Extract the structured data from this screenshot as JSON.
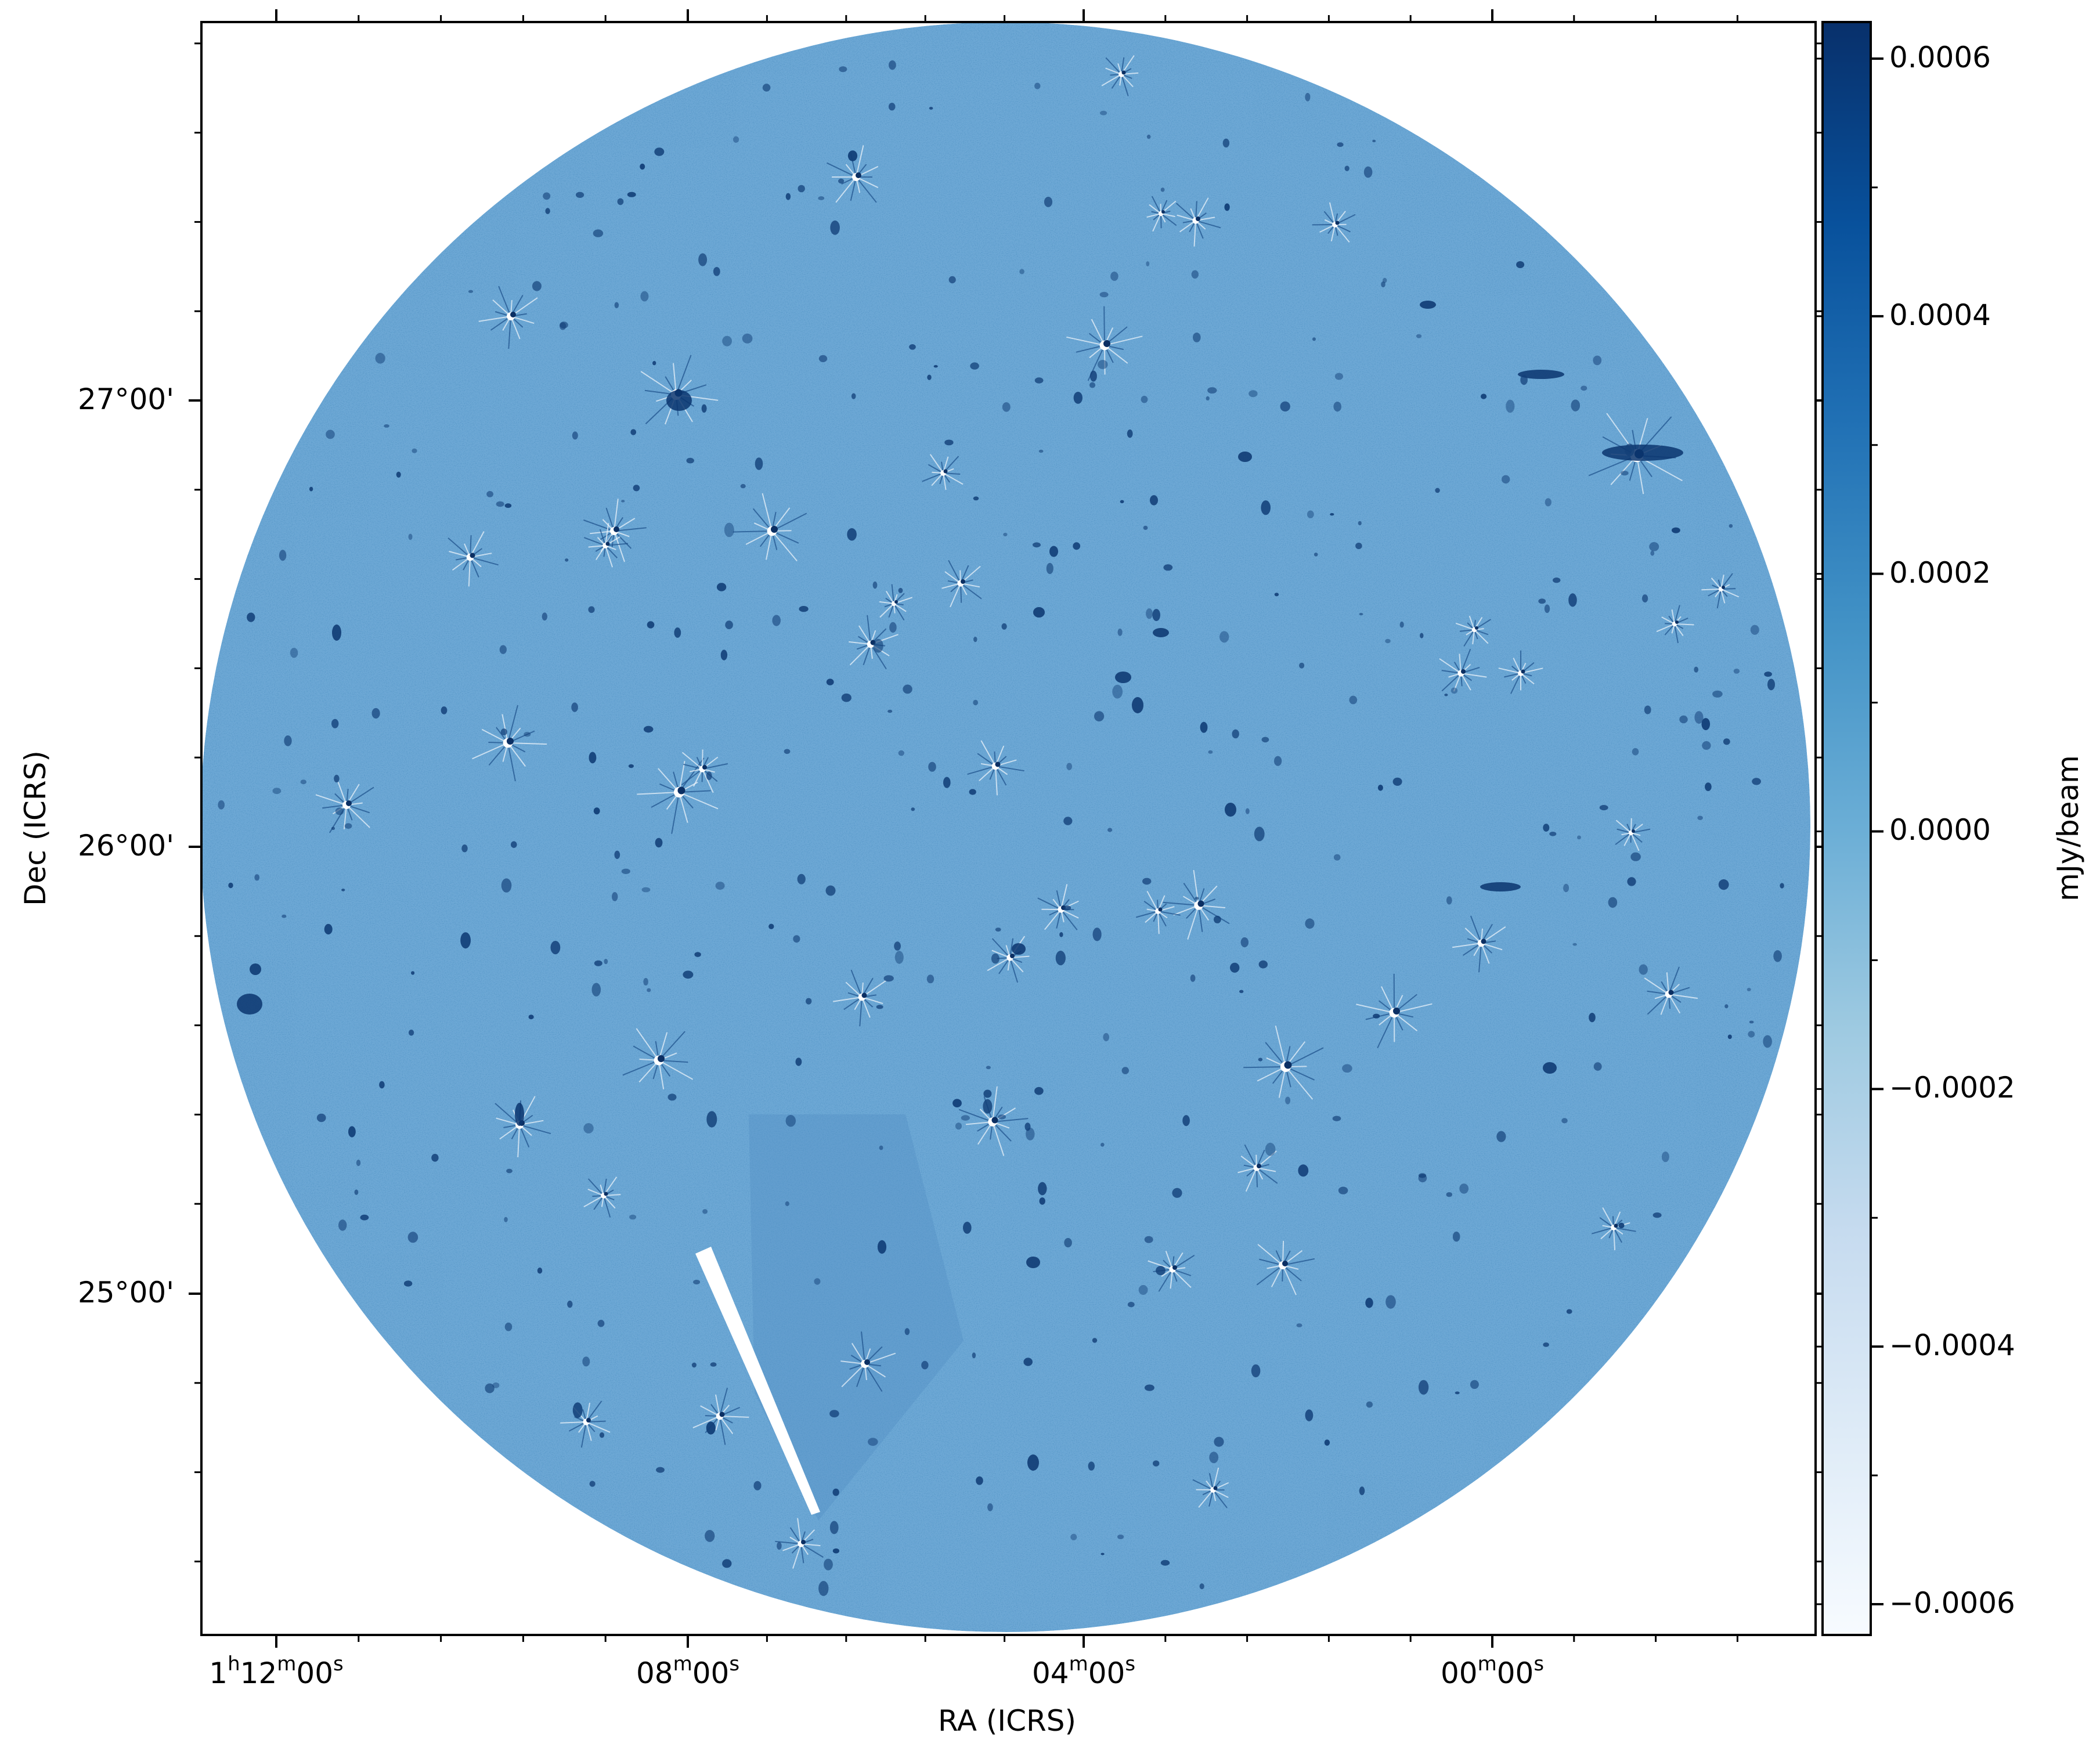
{
  "figure": {
    "xlabel": "RA (ICRS)",
    "ylabel": "Dec (ICRS)",
    "colorbar_label": "mJy/beam",
    "colormap": "Blues",
    "colors": {
      "background_field": "#6aa6d4",
      "dark_source": "#08306b",
      "light_end": "#f7fbff"
    }
  },
  "axes": {
    "ra_ticks": [
      {
        "h": "1",
        "m": "12",
        "s": "00",
        "show_hour": true
      },
      {
        "m": "08",
        "s": "00"
      },
      {
        "m": "04",
        "s": "00"
      },
      {
        "m": "00",
        "s": "00"
      }
    ],
    "dec_ticks": [
      "27°00'",
      "26°00'",
      "25°00'"
    ]
  },
  "colorbar": {
    "vmin": -0.0006,
    "vmax": 0.0006,
    "ticks": [
      "0.0006",
      "0.0004",
      "0.0002",
      "0.0000",
      "−0.0002",
      "−0.0004",
      "−0.0006"
    ],
    "tick_values": [
      0.0006,
      0.0004,
      0.0002,
      0.0,
      -0.0002,
      -0.0004,
      -0.0006
    ]
  }
}
